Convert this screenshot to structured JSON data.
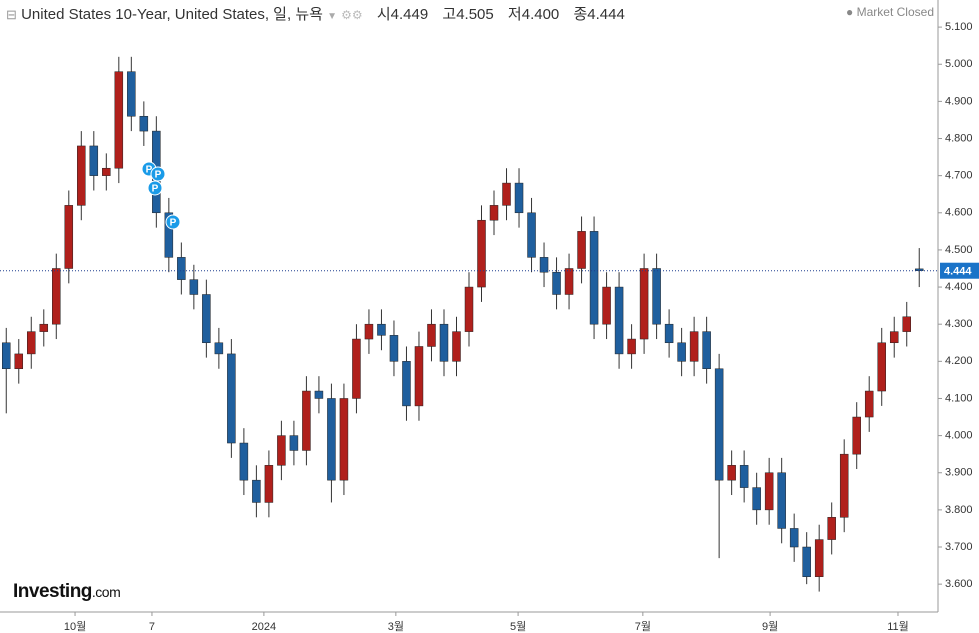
{
  "chart_data": {
    "type": "candlestick",
    "title": "United States 10-Year, United States, 일, 뉴욕",
    "status": "Market Closed",
    "header": {
      "open_label": "시",
      "open": "4.449",
      "high_label": "고",
      "high": "4.505",
      "low_label": "저",
      "low": "4.400",
      "close_label": "종",
      "close": "4.444"
    },
    "brand": "Investing",
    "brand_suffix": ".com",
    "marker_text": "P",
    "up_color": "#b0201c",
    "down_color": "#1f5f9e",
    "x": [
      2,
      6,
      10,
      14,
      18,
      22,
      26,
      30,
      34,
      38,
      42,
      46,
      50,
      54,
      58,
      62,
      66,
      70,
      74,
      78,
      82,
      86,
      90,
      94,
      98,
      102,
      106,
      110,
      114,
      118,
      122,
      126,
      130,
      134,
      138,
      142,
      146,
      150,
      154,
      158,
      162,
      166,
      170,
      174,
      178,
      182,
      186,
      190,
      194,
      198,
      202,
      206,
      210,
      214,
      218,
      222,
      226,
      230,
      234,
      238,
      242,
      246,
      250,
      254,
      258,
      262,
      266,
      270,
      274,
      278,
      282,
      286,
      290,
      294
    ],
    "open": [
      4.25,
      4.18,
      4.22,
      4.28,
      4.3,
      4.45,
      4.62,
      4.78,
      4.7,
      4.72,
      4.98,
      4.86,
      4.82,
      4.6,
      4.48,
      4.42,
      4.38,
      4.25,
      4.22,
      3.98,
      3.88,
      3.82,
      3.92,
      4.0,
      3.96,
      4.12,
      4.1,
      3.88,
      4.1,
      4.26,
      4.3,
      4.27,
      4.2,
      4.08,
      4.24,
      4.3,
      4.2,
      4.28,
      4.4,
      4.58,
      4.62,
      4.68,
      4.6,
      4.48,
      4.44,
      4.38,
      4.45,
      4.55,
      4.3,
      4.4,
      4.22,
      4.26,
      4.45,
      4.3,
      4.25,
      4.2,
      4.28,
      4.18,
      3.88,
      3.92,
      3.86,
      3.8,
      3.9,
      3.75,
      3.7,
      3.62,
      3.72,
      3.78,
      3.95,
      4.05,
      4.12,
      4.25,
      4.28,
      4.449
    ],
    "high": [
      4.29,
      4.26,
      4.32,
      4.34,
      4.49,
      4.66,
      4.82,
      4.82,
      4.76,
      5.02,
      5.02,
      4.9,
      4.86,
      4.64,
      4.52,
      4.46,
      4.42,
      4.29,
      4.26,
      4.02,
      3.92,
      3.96,
      4.04,
      4.04,
      4.16,
      4.16,
      4.14,
      4.14,
      4.3,
      4.34,
      4.34,
      4.31,
      4.24,
      4.28,
      4.34,
      4.34,
      4.32,
      4.44,
      4.62,
      4.66,
      4.72,
      4.72,
      4.64,
      4.52,
      4.48,
      4.49,
      4.59,
      4.59,
      4.44,
      4.44,
      4.3,
      4.49,
      4.49,
      4.34,
      4.29,
      4.32,
      4.32,
      4.22,
      3.96,
      3.96,
      3.9,
      3.94,
      3.94,
      3.79,
      3.74,
      3.76,
      3.82,
      3.99,
      4.09,
      4.16,
      4.29,
      4.32,
      4.36,
      4.505
    ],
    "low": [
      4.06,
      4.14,
      4.18,
      4.24,
      4.26,
      4.41,
      4.58,
      4.66,
      4.66,
      4.68,
      4.82,
      4.78,
      4.56,
      4.44,
      4.38,
      4.34,
      4.21,
      4.18,
      3.94,
      3.84,
      3.78,
      3.78,
      3.88,
      3.92,
      3.92,
      4.06,
      3.82,
      3.84,
      4.06,
      4.22,
      4.23,
      4.16,
      4.04,
      4.04,
      4.2,
      4.16,
      4.16,
      4.24,
      4.36,
      4.54,
      4.58,
      4.56,
      4.44,
      4.4,
      4.34,
      4.34,
      4.41,
      4.26,
      4.26,
      4.18,
      4.18,
      4.22,
      4.26,
      4.21,
      4.16,
      4.16,
      4.14,
      3.67,
      3.84,
      3.82,
      3.76,
      3.76,
      3.71,
      3.66,
      3.6,
      3.58,
      3.68,
      3.74,
      3.91,
      4.01,
      4.08,
      4.21,
      4.24,
      4.4
    ],
    "close": [
      4.18,
      4.22,
      4.28,
      4.3,
      4.45,
      4.62,
      4.78,
      4.7,
      4.72,
      4.98,
      4.86,
      4.82,
      4.6,
      4.48,
      4.42,
      4.38,
      4.25,
      4.22,
      3.98,
      3.88,
      3.82,
      3.92,
      4.0,
      3.96,
      4.12,
      4.1,
      3.88,
      4.1,
      4.26,
      4.3,
      4.27,
      4.2,
      4.08,
      4.24,
      4.3,
      4.2,
      4.28,
      4.4,
      4.58,
      4.62,
      4.68,
      4.6,
      4.48,
      4.44,
      4.38,
      4.45,
      4.55,
      4.3,
      4.4,
      4.22,
      4.26,
      4.45,
      4.3,
      4.25,
      4.2,
      4.28,
      4.18,
      3.88,
      3.92,
      3.86,
      3.8,
      3.9,
      3.75,
      3.7,
      3.62,
      3.72,
      3.78,
      3.95,
      4.05,
      4.12,
      4.25,
      4.28,
      4.32,
      4.444
    ],
    "last_price": {
      "value": 4.444,
      "label": "4.444"
    },
    "xlim": [
      0,
      300
    ],
    "xticks": [
      {
        "value": 24,
        "label": "10월"
      },
      {
        "value": 48.6,
        "label": "7"
      },
      {
        "value": 84.4,
        "label": "2024"
      },
      {
        "value": 126.6,
        "label": "3월"
      },
      {
        "value": 165.7,
        "label": "5월"
      },
      {
        "value": 205.6,
        "label": "7월"
      },
      {
        "value": 246.3,
        "label": "9월"
      },
      {
        "value": 287.2,
        "label": "11월"
      }
    ],
    "ylim": [
      3.525,
      5.173
    ],
    "yticks": [
      {
        "value": 3.6,
        "label": "3.600"
      },
      {
        "value": 3.7,
        "label": "3.700"
      },
      {
        "value": 3.8,
        "label": "3.800"
      },
      {
        "value": 3.9,
        "label": "3.900"
      },
      {
        "value": 4.0,
        "label": "4.000"
      },
      {
        "value": 4.1,
        "label": "4.100"
      },
      {
        "value": 4.2,
        "label": "4.200"
      },
      {
        "value": 4.3,
        "label": "4.300"
      },
      {
        "value": 4.4,
        "label": "4.400"
      },
      {
        "value": 4.5,
        "label": "4.500"
      },
      {
        "value": 4.6,
        "label": "4.600"
      },
      {
        "value": 4.7,
        "label": "4.700"
      },
      {
        "value": 4.8,
        "label": "4.800"
      },
      {
        "value": 4.9,
        "label": "4.900"
      },
      {
        "value": 5.0,
        "label": "5.000"
      },
      {
        "value": 5.1,
        "label": "5.100"
      }
    ]
  }
}
